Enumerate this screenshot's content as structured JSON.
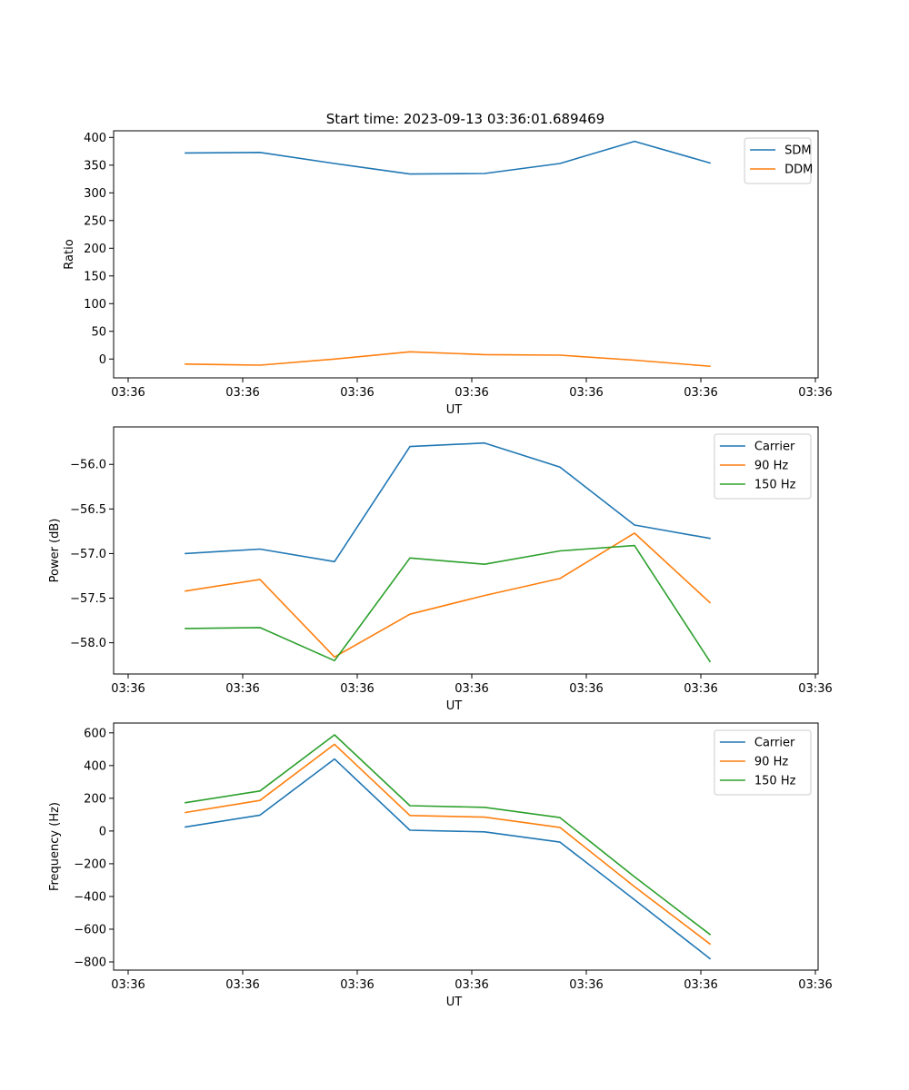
{
  "figure": {
    "title": "Start time: 2023-09-13 03:36:01.689469"
  },
  "chart_data": [
    {
      "type": "line",
      "title": "Start time: 2023-09-13 03:36:01.689469",
      "xlabel": "UT",
      "ylabel": "Ratio",
      "xlim": [
        -0.2,
        8.8
      ],
      "ylim": [
        -34,
        412
      ],
      "x": [
        0.75,
        1.75,
        2.75,
        3.75,
        4.75,
        5.75,
        6.75,
        7.75
      ],
      "xticks": [
        0,
        1.5,
        3,
        4.5,
        6,
        7.5,
        9
      ],
      "xtick_labels": [
        "03:36",
        "03:36",
        "03:36",
        "03:36",
        "03:36",
        "03:36",
        "03:36"
      ],
      "xtick_pos": [
        0,
        1.5,
        3,
        4.5,
        6,
        7.5,
        9
      ],
      "yticks": [
        0,
        50,
        100,
        150,
        200,
        250,
        300,
        350,
        400
      ],
      "ytick_labels": [
        "0",
        "50",
        "100",
        "150",
        "200",
        "250",
        "300",
        "350",
        "400"
      ],
      "legend_position": "top-right",
      "series": [
        {
          "name": "SDM",
          "color": "#1f77b4",
          "x": [
            0,
            1,
            2,
            3,
            4,
            5,
            6,
            7
          ],
          "values": [
            372,
            373,
            353,
            334,
            335,
            353,
            393,
            354
          ]
        },
        {
          "name": "DDM",
          "color": "#ff7f0e",
          "x": [
            0,
            1,
            2,
            3,
            4,
            5,
            6,
            7
          ],
          "values": [
            -9,
            -11,
            0,
            13,
            8,
            7,
            -2,
            -13
          ]
        }
      ]
    },
    {
      "type": "line",
      "title": "",
      "xlabel": "UT",
      "ylabel": "Power (dB)",
      "xlim": [
        -0.2,
        8.8
      ],
      "ylim": [
        -58.35,
        -55.58
      ],
      "x": [
        0,
        1,
        2,
        3,
        4,
        5,
        6,
        7
      ],
      "xtick_labels": [
        "03:36",
        "03:36",
        "03:36",
        "03:36",
        "03:36",
        "03:36",
        "03:36"
      ],
      "xtick_pos": [
        0,
        1.5,
        3,
        4.5,
        6,
        7.5,
        9
      ],
      "yticks": [
        -58.0,
        -57.5,
        -57.0,
        -56.5,
        -56.0
      ],
      "ytick_labels": [
        "−58.0",
        "−57.5",
        "−57.0",
        "−56.5",
        "−56.0"
      ],
      "legend_position": "top-right",
      "series": [
        {
          "name": "Carrier",
          "color": "#1f77b4",
          "values": [
            -57.0,
            -56.95,
            -57.09,
            -55.8,
            -55.76,
            -56.03,
            -56.68,
            -56.83
          ]
        },
        {
          "name": "90 Hz",
          "color": "#ff7f0e",
          "values": [
            -57.42,
            -57.29,
            -58.16,
            -57.68,
            -57.47,
            -57.28,
            -56.77,
            -57.55
          ]
        },
        {
          "name": "150 Hz",
          "color": "#2ca02c",
          "values": [
            -57.84,
            -57.83,
            -58.2,
            -57.05,
            -57.12,
            -56.97,
            -56.91,
            -58.21
          ]
        }
      ]
    },
    {
      "type": "line",
      "title": "",
      "xlabel": "UT",
      "ylabel": "Frequency (Hz)",
      "xlim": [
        -0.2,
        8.8
      ],
      "ylim": [
        -850,
        660
      ],
      "x": [
        0,
        1,
        2,
        3,
        4,
        5,
        6,
        7
      ],
      "xtick_labels": [
        "03:36",
        "03:36",
        "03:36",
        "03:36",
        "03:36",
        "03:36",
        "03:36"
      ],
      "xtick_pos": [
        0,
        1.5,
        3,
        4.5,
        6,
        7.5,
        9
      ],
      "yticks": [
        -800,
        -600,
        -400,
        -200,
        0,
        200,
        400,
        600
      ],
      "ytick_labels": [
        "−800",
        "−600",
        "−400",
        "−200",
        "0",
        "200",
        "400",
        "600"
      ],
      "legend_position": "top-right",
      "series": [
        {
          "name": "Carrier",
          "color": "#1f77b4",
          "values": [
            25,
            97,
            440,
            5,
            -5,
            -68,
            -420,
            -780
          ]
        },
        {
          "name": "90 Hz",
          "color": "#ff7f0e",
          "values": [
            113,
            187,
            530,
            95,
            85,
            22,
            -340,
            -690
          ]
        },
        {
          "name": "150 Hz",
          "color": "#2ca02c",
          "values": [
            173,
            245,
            588,
            155,
            145,
            82,
            -280,
            -632
          ]
        }
      ]
    }
  ]
}
